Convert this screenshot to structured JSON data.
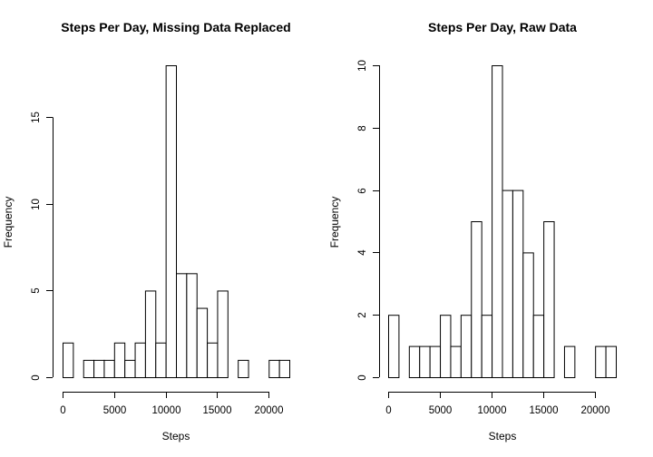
{
  "chart_data": [
    {
      "type": "bar",
      "title": "Steps Per Day, Missing Data Replaced",
      "xlabel": "Steps",
      "ylabel": "Frequency",
      "bin_width": 1000,
      "bins_start": [
        0,
        1000,
        2000,
        3000,
        4000,
        5000,
        6000,
        7000,
        8000,
        9000,
        10000,
        11000,
        12000,
        13000,
        14000,
        15000,
        16000,
        17000,
        18000,
        19000,
        20000,
        21000
      ],
      "values": [
        2,
        0,
        1,
        1,
        1,
        2,
        1,
        2,
        5,
        2,
        18,
        6,
        6,
        4,
        2,
        5,
        0,
        1,
        0,
        0,
        1,
        1
      ],
      "xlim": [
        0,
        22000
      ],
      "ylim": [
        0,
        18
      ],
      "x_ticks": [
        0,
        5000,
        10000,
        15000,
        20000
      ],
      "x_tick_labels": [
        "0",
        "5000",
        "10000",
        "15000",
        "20000"
      ],
      "y_ticks": [
        0,
        5,
        10,
        15
      ],
      "y_tick_labels": [
        "0",
        "5",
        "10",
        "15"
      ]
    },
    {
      "type": "bar",
      "title": "Steps Per Day, Raw Data",
      "xlabel": "Steps",
      "ylabel": "Frequency",
      "bin_width": 1000,
      "bins_start": [
        0,
        1000,
        2000,
        3000,
        4000,
        5000,
        6000,
        7000,
        8000,
        9000,
        10000,
        11000,
        12000,
        13000,
        14000,
        15000,
        16000,
        17000,
        18000,
        19000,
        20000,
        21000
      ],
      "values": [
        2,
        0,
        1,
        1,
        1,
        2,
        1,
        2,
        5,
        2,
        10,
        6,
        6,
        4,
        2,
        5,
        0,
        1,
        0,
        0,
        1,
        1
      ],
      "xlim": [
        0,
        22000
      ],
      "ylim": [
        0,
        10
      ],
      "x_ticks": [
        0,
        5000,
        10000,
        15000,
        20000
      ],
      "x_tick_labels": [
        "0",
        "5000",
        "10000",
        "15000",
        "20000"
      ],
      "y_ticks": [
        0,
        2,
        4,
        6,
        8,
        10
      ],
      "y_tick_labels": [
        "0",
        "2",
        "4",
        "6",
        "8",
        "10"
      ]
    }
  ]
}
